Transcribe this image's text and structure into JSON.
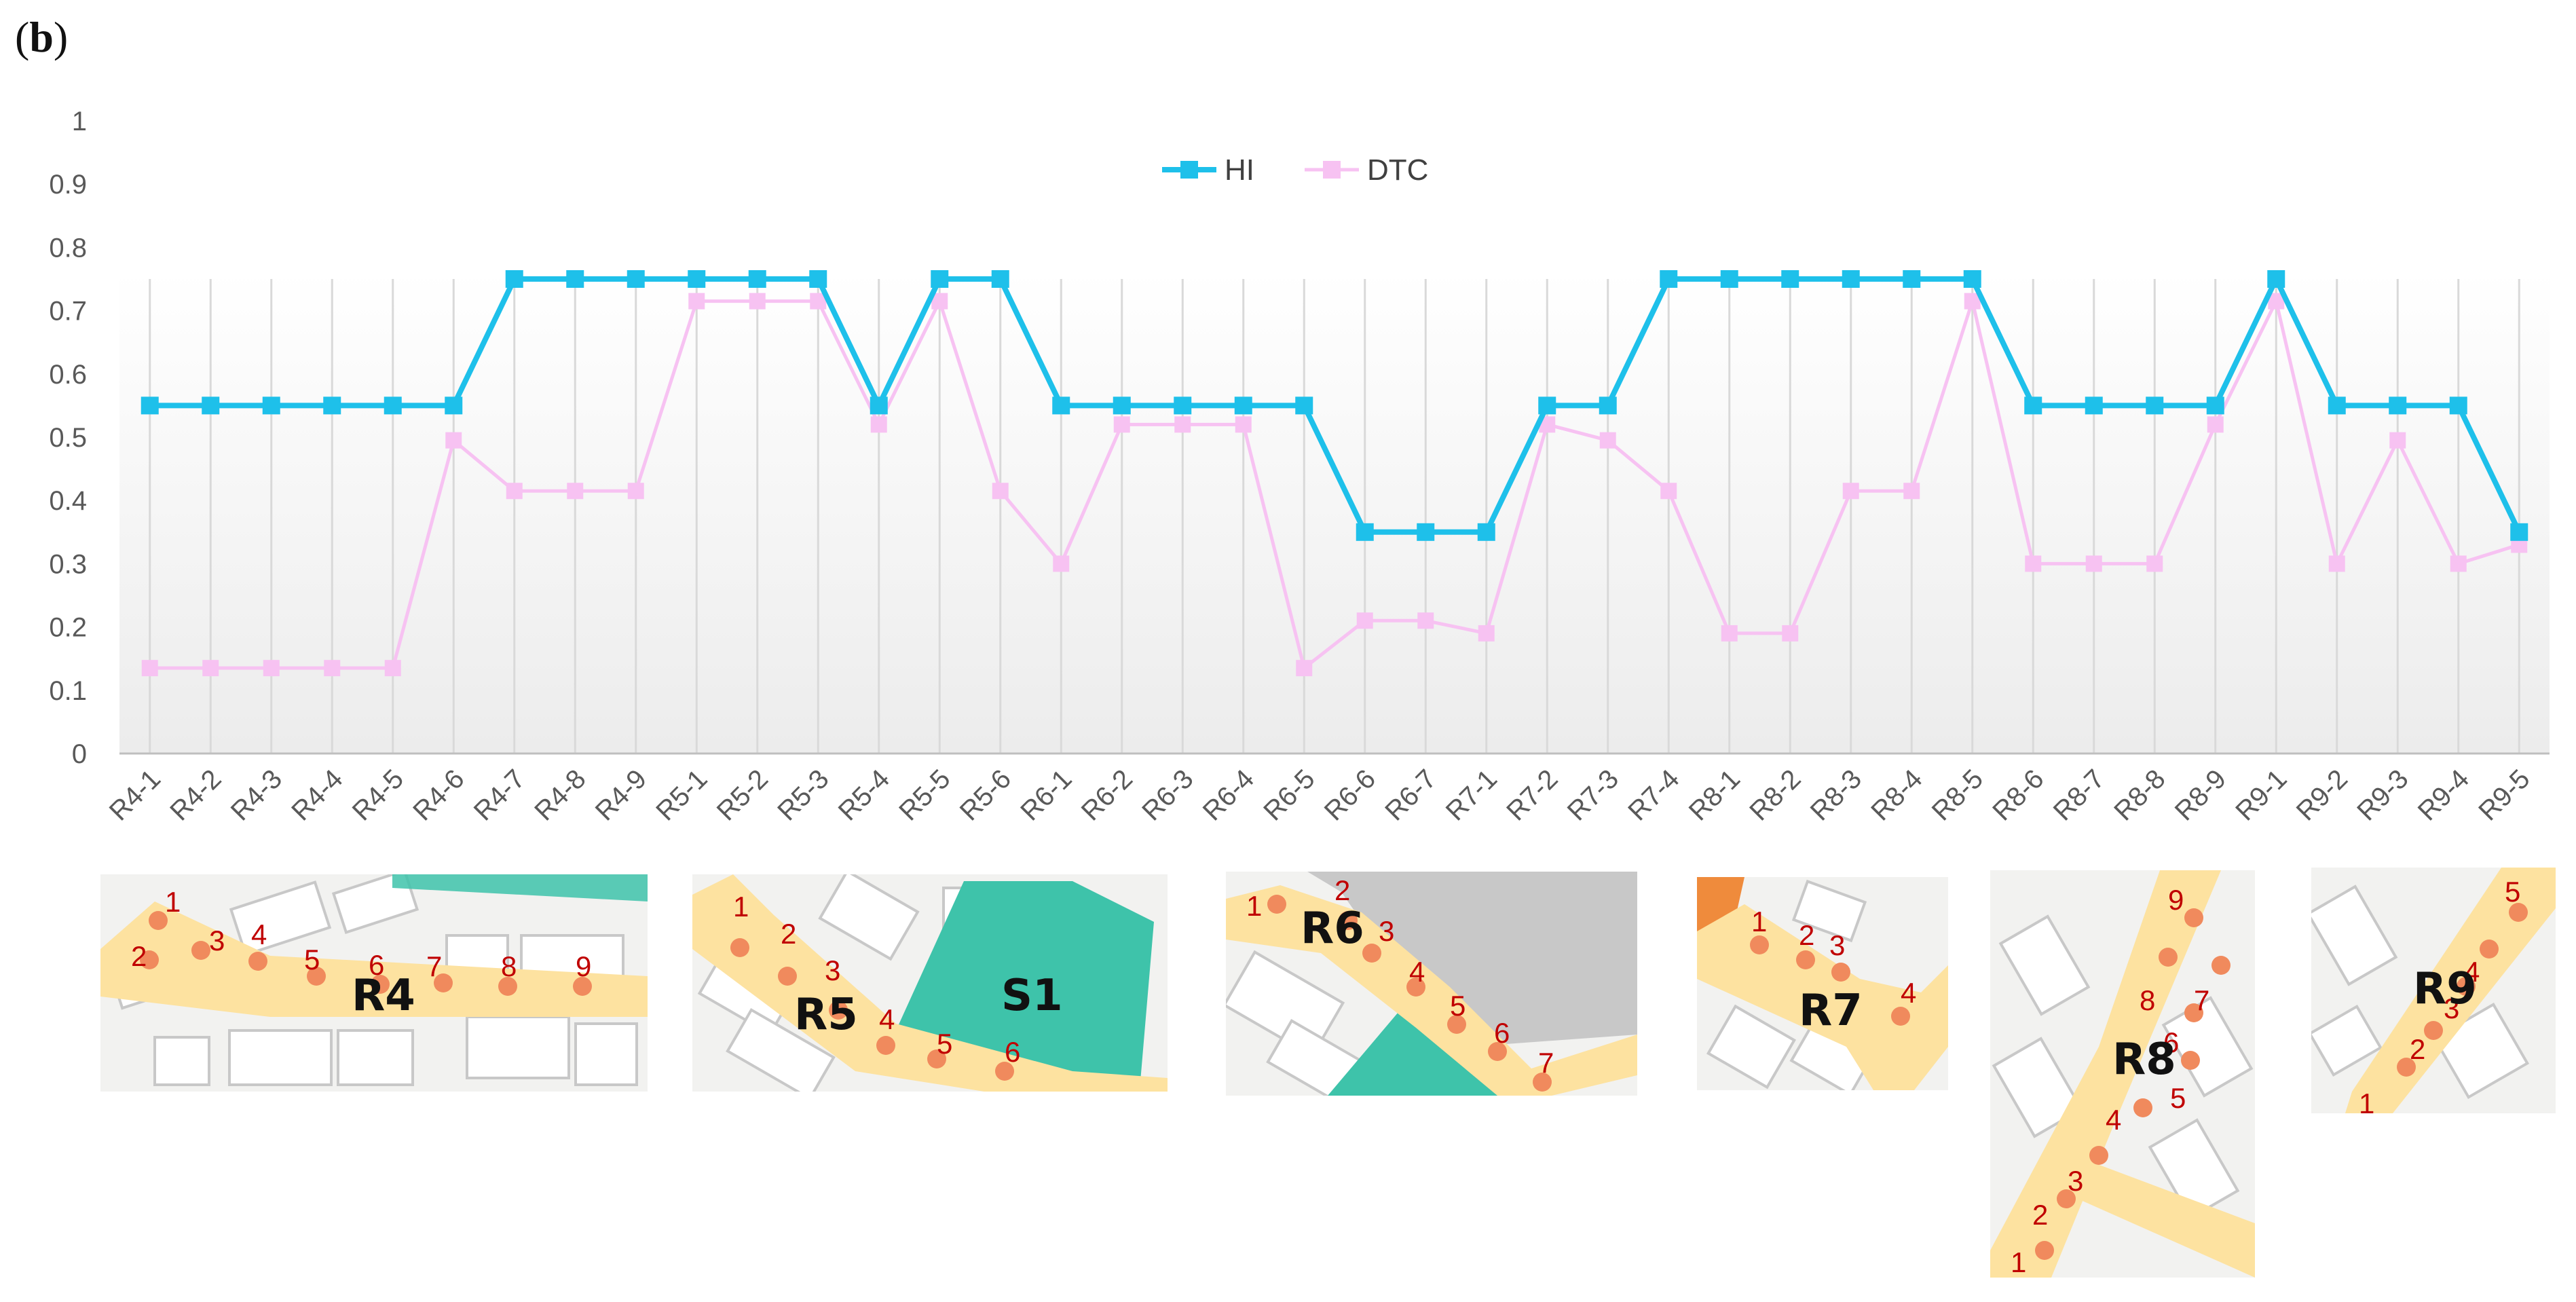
{
  "panel_label": "b",
  "chart_data": {
    "type": "line",
    "categories": [
      "R4-1",
      "R4-2",
      "R4-3",
      "R4-4",
      "R4-5",
      "R4-6",
      "R4-7",
      "R4-8",
      "R4-9",
      "R5-1",
      "R5-2",
      "R5-3",
      "R5-4",
      "R5-5",
      "R5-6",
      "R6-1",
      "R6-2",
      "R6-3",
      "R6-4",
      "R6-5",
      "R6-6",
      "R6-7",
      "R7-1",
      "R7-2",
      "R7-3",
      "R7-4",
      "R8-1",
      "R8-2",
      "R8-3",
      "R8-4",
      "R8-5",
      "R8-6",
      "R8-7",
      "R8-8",
      "R8-9",
      "R9-1",
      "R9-2",
      "R9-3",
      "R9-4",
      "R9-5"
    ],
    "series": [
      {
        "name": "HI",
        "color": "#1ec0ea",
        "values": [
          0.55,
          0.55,
          0.55,
          0.55,
          0.55,
          0.55,
          0.75,
          0.75,
          0.75,
          0.75,
          0.75,
          0.75,
          0.55,
          0.75,
          0.75,
          0.55,
          0.55,
          0.55,
          0.55,
          0.55,
          0.35,
          0.35,
          0.35,
          0.55,
          0.55,
          0.75,
          0.75,
          0.75,
          0.75,
          0.75,
          0.75,
          0.55,
          0.55,
          0.55,
          0.55,
          0.75,
          0.55,
          0.55,
          0.55,
          0.35
        ]
      },
      {
        "name": "DTC",
        "color": "#f7c2f2",
        "values": [
          0.135,
          0.135,
          0.135,
          0.135,
          0.135,
          0.495,
          0.415,
          0.415,
          0.415,
          0.715,
          0.715,
          0.715,
          0.52,
          0.715,
          0.415,
          0.3,
          0.52,
          0.52,
          0.52,
          0.135,
          0.21,
          0.21,
          0.19,
          0.52,
          0.495,
          0.415,
          0.19,
          0.19,
          0.415,
          0.415,
          0.715,
          0.3,
          0.3,
          0.3,
          0.52,
          0.715,
          0.3,
          0.495,
          0.3,
          0.33
        ]
      }
    ],
    "yticks": [
      "0",
      "0.1",
      "0.2",
      "0.3",
      "0.4",
      "0.5",
      "0.6",
      "0.7",
      "0.8",
      "0.9",
      "1"
    ],
    "ylim": [
      0,
      1
    ],
    "grid": "vertical",
    "legend_position": "top-center"
  },
  "maps": [
    {
      "id": "r4",
      "label": "R4",
      "points": [
        "1",
        "2",
        "3",
        "4",
        "5",
        "6",
        "7",
        "8",
        "9"
      ]
    },
    {
      "id": "r5",
      "label": "R5",
      "extra_label": "S1",
      "points": [
        "1",
        "2",
        "3",
        "4",
        "5",
        "6"
      ]
    },
    {
      "id": "r6",
      "label": "R6",
      "points": [
        "1",
        "2",
        "3",
        "4",
        "5",
        "6",
        "7"
      ]
    },
    {
      "id": "r7",
      "label": "R7",
      "points": [
        "1",
        "2",
        "3",
        "4"
      ]
    },
    {
      "id": "r8",
      "label": "R8",
      "points": [
        "1",
        "2",
        "3",
        "4",
        "5",
        "6",
        "7",
        "8",
        "9"
      ]
    },
    {
      "id": "r9",
      "label": "R9",
      "points": [
        "1",
        "2",
        "3",
        "4",
        "5"
      ]
    }
  ]
}
